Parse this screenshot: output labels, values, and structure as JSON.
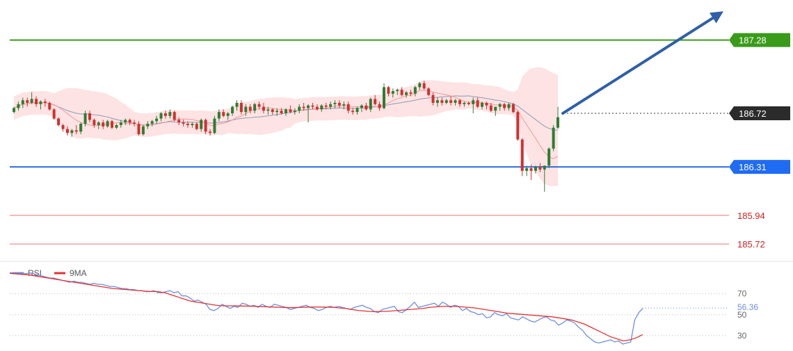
{
  "chart_data": [
    {
      "type": "candlestick",
      "panel": "price",
      "title": "",
      "colors": {
        "up": "#2e7d32",
        "down": "#d32f2f",
        "bands_fill": "#fde3e3",
        "mid_band": "#8c9ab8",
        "fast_ma": "#ef9a9a"
      },
      "levels": [
        {
          "name": "resistance-2",
          "value": 187.28,
          "label": "187.28",
          "color": "#3a9b1a",
          "label_bg": "#3a9b1a",
          "style": "solid"
        },
        {
          "name": "pivot",
          "value": 186.31,
          "label": "186.31",
          "color": "#2d6be0",
          "label_bg": "#1f6bf2",
          "style": "solid"
        },
        {
          "name": "support-1",
          "value": 185.94,
          "label": "185.94",
          "color": "#f2a0a0",
          "label_color": "#d32020",
          "style": "solid"
        },
        {
          "name": "support-2",
          "value": 185.72,
          "label": "185.72",
          "color": "#f2a0a0",
          "label_color": "#d32020",
          "style": "solid"
        },
        {
          "name": "current-price",
          "value": 186.72,
          "label": "186.72",
          "color": "#333333",
          "label_bg": "#2b2b2b",
          "style": "dotted"
        }
      ],
      "arrow": {
        "direction": "up",
        "color": "#2f5fa8",
        "from_price": 186.72,
        "to_price": 187.5
      },
      "candles": [
        [
          186.73,
          186.77,
          186.72,
          186.76
        ],
        [
          186.76,
          186.81,
          186.74,
          186.79
        ],
        [
          186.79,
          186.84,
          186.76,
          186.82
        ],
        [
          186.82,
          186.84,
          186.77,
          186.8
        ],
        [
          186.8,
          186.88,
          186.79,
          186.83
        ],
        [
          186.83,
          186.85,
          186.77,
          186.79
        ],
        [
          186.79,
          186.82,
          186.75,
          186.81
        ],
        [
          186.81,
          186.83,
          186.77,
          186.8
        ],
        [
          186.8,
          186.81,
          186.74,
          186.75
        ],
        [
          186.75,
          186.76,
          186.67,
          186.68
        ],
        [
          186.68,
          186.69,
          186.62,
          186.63
        ],
        [
          186.63,
          186.64,
          186.58,
          186.6
        ],
        [
          186.6,
          186.62,
          186.55,
          186.57
        ],
        [
          186.57,
          186.6,
          186.54,
          186.59
        ],
        [
          186.59,
          186.63,
          186.56,
          186.58
        ],
        [
          186.58,
          186.65,
          186.56,
          186.64
        ],
        [
          186.64,
          186.74,
          186.62,
          186.72
        ],
        [
          186.72,
          186.74,
          186.65,
          186.67
        ],
        [
          186.67,
          186.68,
          186.61,
          186.63
        ],
        [
          186.63,
          186.66,
          186.6,
          186.65
        ],
        [
          186.65,
          186.67,
          186.6,
          186.62
        ],
        [
          186.62,
          186.67,
          186.61,
          186.66
        ],
        [
          186.66,
          186.67,
          186.6,
          186.61
        ],
        [
          186.61,
          186.64,
          186.6,
          186.63
        ],
        [
          186.63,
          186.67,
          186.61,
          186.65
        ],
        [
          186.65,
          186.68,
          186.63,
          186.67
        ],
        [
          186.67,
          186.68,
          186.63,
          186.65
        ],
        [
          186.65,
          186.67,
          186.62,
          186.64
        ],
        [
          186.64,
          186.66,
          186.55,
          186.56
        ],
        [
          186.56,
          186.63,
          186.55,
          186.62
        ],
        [
          186.62,
          186.66,
          186.6,
          186.64
        ],
        [
          186.64,
          186.67,
          186.62,
          186.66
        ],
        [
          186.66,
          186.7,
          186.64,
          186.68
        ],
        [
          186.68,
          186.73,
          186.66,
          186.72
        ],
        [
          186.72,
          186.74,
          186.68,
          186.7
        ],
        [
          186.7,
          186.75,
          186.68,
          186.73
        ],
        [
          186.73,
          186.74,
          186.66,
          186.67
        ],
        [
          186.67,
          186.69,
          186.63,
          186.65
        ],
        [
          186.65,
          186.67,
          186.62,
          186.64
        ],
        [
          186.64,
          186.66,
          186.61,
          186.63
        ],
        [
          186.63,
          186.65,
          186.61,
          186.64
        ],
        [
          186.64,
          186.65,
          186.59,
          186.6
        ],
        [
          186.6,
          186.68,
          186.58,
          186.67
        ],
        [
          186.67,
          186.68,
          186.56,
          186.58
        ],
        [
          186.58,
          186.6,
          186.55,
          186.57
        ],
        [
          186.57,
          186.7,
          186.56,
          186.68
        ],
        [
          186.68,
          186.75,
          186.66,
          186.73
        ],
        [
          186.73,
          186.75,
          186.69,
          186.7
        ],
        [
          186.7,
          186.73,
          186.67,
          186.72
        ],
        [
          186.72,
          186.78,
          186.7,
          186.77
        ],
        [
          186.77,
          186.82,
          186.74,
          186.8
        ],
        [
          186.8,
          186.82,
          186.71,
          186.73
        ],
        [
          186.73,
          186.79,
          186.7,
          186.77
        ],
        [
          186.77,
          186.79,
          186.72,
          186.74
        ],
        [
          186.74,
          186.8,
          186.72,
          186.79
        ],
        [
          186.79,
          186.81,
          186.75,
          186.77
        ],
        [
          186.77,
          186.8,
          186.72,
          186.74
        ],
        [
          186.74,
          186.77,
          186.71,
          186.75
        ],
        [
          186.75,
          186.76,
          186.71,
          186.73
        ],
        [
          186.73,
          186.76,
          186.7,
          186.74
        ],
        [
          186.74,
          186.76,
          186.71,
          186.72
        ],
        [
          186.72,
          186.76,
          186.7,
          186.75
        ],
        [
          186.75,
          186.78,
          186.72,
          186.73
        ],
        [
          186.73,
          186.76,
          186.71,
          186.74
        ],
        [
          186.74,
          186.79,
          186.72,
          186.77
        ],
        [
          186.77,
          186.8,
          186.74,
          186.76
        ],
        [
          186.76,
          186.79,
          186.65,
          186.78
        ],
        [
          186.78,
          186.8,
          186.75,
          186.77
        ],
        [
          186.77,
          186.79,
          186.74,
          186.75
        ],
        [
          186.75,
          186.79,
          186.73,
          186.78
        ],
        [
          186.78,
          186.8,
          186.75,
          186.77
        ],
        [
          186.77,
          186.81,
          186.75,
          186.79
        ],
        [
          186.79,
          186.82,
          186.76,
          186.8
        ],
        [
          186.8,
          186.82,
          186.76,
          186.78
        ],
        [
          186.78,
          186.81,
          186.75,
          186.79
        ],
        [
          186.79,
          186.81,
          186.72,
          186.74
        ],
        [
          186.74,
          186.76,
          186.71,
          186.73
        ],
        [
          186.73,
          186.77,
          186.71,
          186.76
        ],
        [
          186.76,
          186.79,
          186.73,
          186.78
        ],
        [
          186.78,
          186.8,
          186.74,
          186.75
        ],
        [
          186.75,
          186.84,
          186.73,
          186.83
        ],
        [
          186.83,
          186.86,
          186.78,
          186.79
        ],
        [
          186.79,
          186.81,
          186.74,
          186.76
        ],
        [
          186.76,
          186.95,
          186.75,
          186.92
        ],
        [
          186.92,
          186.93,
          186.85,
          186.87
        ],
        [
          186.87,
          186.91,
          186.84,
          186.89
        ],
        [
          186.89,
          186.91,
          186.86,
          186.9
        ],
        [
          186.9,
          186.92,
          186.85,
          186.86
        ],
        [
          186.86,
          186.89,
          186.84,
          186.88
        ],
        [
          186.88,
          186.9,
          186.85,
          186.87
        ],
        [
          186.87,
          186.93,
          186.85,
          186.92
        ],
        [
          186.92,
          186.96,
          186.9,
          186.95
        ],
        [
          186.95,
          186.97,
          186.9,
          186.91
        ],
        [
          186.91,
          186.92,
          186.85,
          186.86
        ],
        [
          186.86,
          186.88,
          186.78,
          186.8
        ],
        [
          186.8,
          186.84,
          186.77,
          186.82
        ],
        [
          186.82,
          186.84,
          186.78,
          186.8
        ],
        [
          186.8,
          186.83,
          186.79,
          186.82
        ],
        [
          186.82,
          186.85,
          186.78,
          186.8
        ],
        [
          186.8,
          186.83,
          186.78,
          186.82
        ],
        [
          186.82,
          186.83,
          186.77,
          186.79
        ],
        [
          186.79,
          186.81,
          186.77,
          186.8
        ],
        [
          186.8,
          186.81,
          186.78,
          186.79
        ],
        [
          186.79,
          186.84,
          186.72,
          186.82
        ],
        [
          186.82,
          186.84,
          186.76,
          186.77
        ],
        [
          186.77,
          186.81,
          186.75,
          186.8
        ],
        [
          186.8,
          186.81,
          186.75,
          186.78
        ],
        [
          186.78,
          186.8,
          186.73,
          186.74
        ],
        [
          186.74,
          186.77,
          186.7,
          186.77
        ],
        [
          186.77,
          186.8,
          186.74,
          186.79
        ],
        [
          186.79,
          186.8,
          186.74,
          186.76
        ],
        [
          186.76,
          186.8,
          186.74,
          186.79
        ],
        [
          186.79,
          186.8,
          186.72,
          186.73
        ],
        [
          186.73,
          186.74,
          186.51,
          186.52
        ],
        [
          186.52,
          186.53,
          186.24,
          186.28
        ],
        [
          186.28,
          186.32,
          186.24,
          186.3
        ],
        [
          186.3,
          186.33,
          186.21,
          186.28
        ],
        [
          186.28,
          186.32,
          186.26,
          186.31
        ],
        [
          186.31,
          186.34,
          186.27,
          186.29
        ],
        [
          186.29,
          186.32,
          186.12,
          186.32
        ],
        [
          186.32,
          186.46,
          186.3,
          186.45
        ],
        [
          186.45,
          186.63,
          186.43,
          186.61
        ],
        [
          186.61,
          186.77,
          186.6,
          186.69
        ]
      ]
    },
    {
      "type": "line",
      "panel": "oscillator",
      "title": "",
      "legend": [
        {
          "name": "RSI",
          "color": "#6b8fe0"
        },
        {
          "name": "9MA",
          "color": "#e53030"
        }
      ],
      "ylim": [
        20,
        95
      ],
      "ticks": [
        {
          "value": 70,
          "label": "70"
        },
        {
          "value": 30,
          "label": "30"
        }
      ],
      "current_value": {
        "value": 56.36,
        "label": "56.36"
      },
      "partial_tick_label": "50",
      "series": [
        {
          "name": "RSI",
          "values": [
            90,
            90,
            90,
            90,
            89,
            90,
            89,
            88,
            87,
            86,
            85,
            85,
            84,
            83,
            82,
            81,
            82,
            81,
            81,
            80,
            79,
            80,
            79,
            79,
            78,
            77,
            77,
            76,
            75,
            75,
            74,
            74,
            73,
            73,
            72,
            72,
            73,
            71,
            71,
            72,
            73,
            71,
            72,
            68,
            68,
            66,
            63,
            64,
            62,
            60,
            55,
            54,
            56,
            60,
            58,
            56,
            58,
            57,
            61,
            60,
            58,
            59,
            57,
            60,
            58,
            57,
            60,
            59,
            58,
            57,
            55,
            56,
            57,
            58,
            59,
            57,
            56,
            54,
            55,
            57,
            58,
            57,
            58,
            57,
            56,
            55,
            57,
            58,
            59,
            57,
            56,
            53,
            52,
            55,
            56,
            57,
            58,
            53,
            52,
            55,
            58,
            62,
            57,
            58,
            59,
            60,
            61,
            58,
            62,
            60,
            57,
            59,
            58,
            54,
            56,
            53,
            52,
            50,
            51,
            47,
            48,
            52,
            50,
            49,
            51,
            47,
            46,
            45,
            48,
            46,
            44,
            43,
            45,
            47,
            48,
            45,
            44,
            40,
            42,
            45,
            44,
            42,
            38,
            35,
            30,
            27,
            24,
            23,
            24,
            25,
            26,
            24,
            25,
            22,
            23,
            24,
            45,
            52,
            56
          ]
        },
        {
          "name": "9MA",
          "values": [
            89.5,
            89.0,
            88.5,
            88.0,
            87.0,
            86.0,
            85.0,
            84.0,
            83.0,
            82.0,
            81.0,
            80.0,
            79.0,
            78.0,
            77.0,
            76.0,
            75.0,
            74.5,
            74.0,
            73.5,
            73.0,
            72.5,
            72.2,
            72.0,
            71.0,
            69.0,
            67.0,
            65.0,
            63.0,
            62.0,
            61.0,
            60.0,
            59.0,
            58.5,
            58.5,
            58.5,
            58.3,
            58.2,
            58.0,
            57.8,
            57.5,
            57.3,
            57.0,
            56.8,
            56.8,
            57.0,
            57.2,
            57.4,
            57.3,
            57.2,
            57.1,
            56.5,
            56.0,
            55.0,
            54.0,
            53.5,
            53.0,
            53.0,
            53.2,
            53.5,
            54.0,
            54.5,
            55.0,
            55.5,
            56.0,
            57.0,
            57.5,
            58.0,
            58.0,
            58.0,
            57.5,
            57.0,
            56.5,
            55.5,
            54.5,
            53.5,
            52.5,
            51.5,
            51.0,
            50.5,
            50.0,
            49.5,
            49.0,
            48.5,
            48.0,
            47.0,
            46.0,
            45.0,
            43.0,
            41.0,
            38.0,
            35.0,
            32.0,
            29.0,
            27.0,
            25.0,
            26.0,
            28.0,
            31.0
          ]
        }
      ]
    }
  ]
}
